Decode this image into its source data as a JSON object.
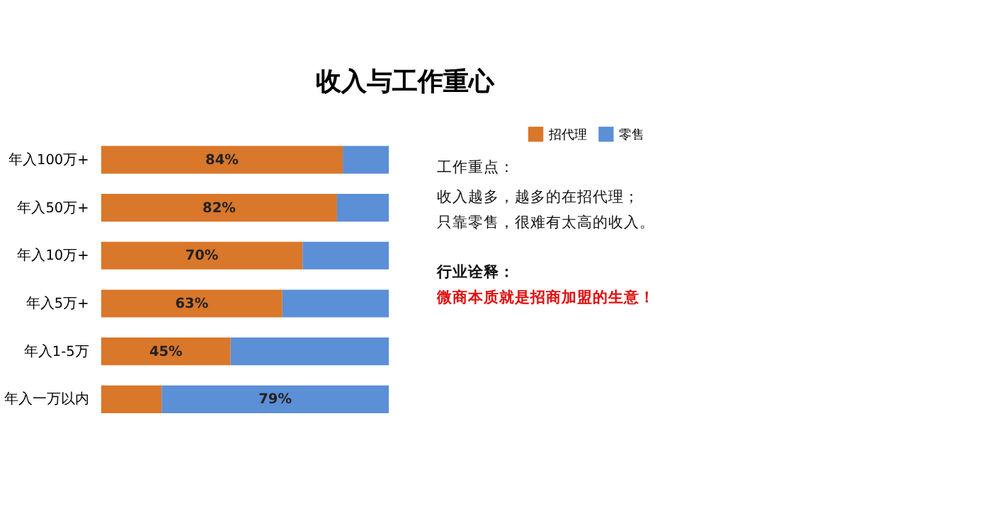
{
  "chart_data": {
    "type": "bar",
    "orientation": "horizontal",
    "stacked": true,
    "title": "收入与工作重心",
    "categories": [
      "年入100万+",
      "年入50万+",
      "年入10万+",
      "年入5万+",
      "年入1-5万",
      "年入一万以内"
    ],
    "series": [
      {
        "name": "招代理",
        "color": "#d9772a",
        "values": [
          84,
          82,
          70,
          63,
          45,
          21
        ],
        "value_labels": [
          "84%",
          "82%",
          "70%",
          "63%",
          "45%",
          null
        ]
      },
      {
        "name": "零售",
        "color": "#5b8fd6",
        "values": [
          16,
          18,
          30,
          37,
          55,
          79
        ],
        "value_labels": [
          null,
          null,
          null,
          null,
          null,
          "79%"
        ]
      }
    ],
    "legend": "top right",
    "tick_labels": "y",
    "grid": false,
    "annotations": [
      "工作重点：",
      "收入越多，越多的在招代理；",
      "只靠零售，很难有太高的收入。",
      "行业诠释：",
      "微商本质就是招商加盟的生意！"
    ]
  }
}
